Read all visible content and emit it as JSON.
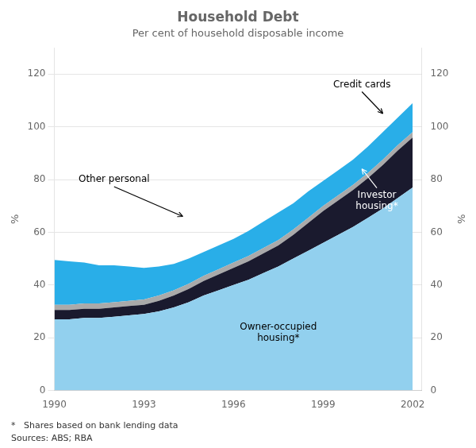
{
  "chart_data": {
    "type": "area",
    "title": "Household Debt",
    "subtitle": "Per cent of household disposable income",
    "footnotes": [
      "*   Shares based on bank lending data",
      "Sources: ABS; RBA"
    ],
    "ylabel": "%",
    "y2label": "%",
    "stacked": true,
    "grid": "y",
    "x": [
      1990,
      1990.5,
      1991,
      1991.5,
      1992,
      1992.5,
      1993,
      1993.5,
      1994,
      1994.5,
      1995,
      1995.5,
      1996,
      1996.5,
      1997,
      1997.5,
      1998,
      1998.5,
      1999,
      1999.5,
      2000,
      2000.5,
      2001,
      2001.5,
      2002
    ],
    "xlim": [
      1990,
      2002.3
    ],
    "xticks": [
      1990,
      1993,
      1996,
      1999,
      2002
    ],
    "ylim": [
      0,
      130
    ],
    "yticks": [
      0,
      20,
      40,
      60,
      80,
      100,
      120
    ],
    "y2lim": [
      0,
      130
    ],
    "y2ticks": [
      0,
      20,
      40,
      60,
      80,
      100,
      120
    ],
    "series": [
      {
        "color": "#92d0ee",
        "values": [
          27,
          27,
          27.5,
          27.5,
          28,
          28.5,
          29,
          30,
          31.5,
          33.5,
          36,
          38,
          40,
          42,
          44.5,
          47,
          50,
          53,
          56,
          59,
          62,
          65.5,
          69,
          73,
          77
        ]
      },
      {
        "color": "#1a1a2e",
        "values": [
          3.5,
          3.5,
          3.5,
          3.5,
          3.5,
          3.5,
          3.5,
          4,
          4.5,
          5,
          5.5,
          6,
          6.5,
          7,
          7.5,
          8,
          9,
          10.5,
          12,
          13,
          14,
          15,
          16.5,
          18,
          19
        ]
      },
      {
        "color": "#aaaaaa",
        "values": [
          2,
          2,
          2,
          2,
          2,
          2,
          2,
          2,
          2,
          2,
          2,
          2,
          2,
          2,
          2,
          2,
          2,
          2,
          2,
          2,
          2,
          2,
          2,
          2,
          2
        ]
      },
      {
        "color": "#29aee8",
        "values": [
          17,
          16.5,
          15.5,
          14.5,
          14,
          13,
          12,
          11,
          10,
          9.5,
          9,
          9,
          9,
          9.5,
          10,
          10.5,
          10,
          10,
          9.5,
          9.5,
          9.5,
          10,
          10.5,
          10.5,
          11
        ]
      }
    ],
    "annotations": [
      {
        "text": "Credit cards",
        "x": 2000.3,
        "y": 116,
        "arrow_to": [
          2001.0,
          105
        ]
      },
      {
        "text": "Other personal",
        "x": 1992.0,
        "y": 80,
        "arrow_to": [
          1994.3,
          66
        ]
      },
      {
        "text": "Investor\nhousing*",
        "x": 2000.8,
        "y": 72,
        "color": "#ffffff",
        "arrow_to": [
          2000.3,
          84
        ]
      },
      {
        "text": "Owner-occupied\nhousing*",
        "x": 1997.5,
        "y": 22
      }
    ]
  }
}
